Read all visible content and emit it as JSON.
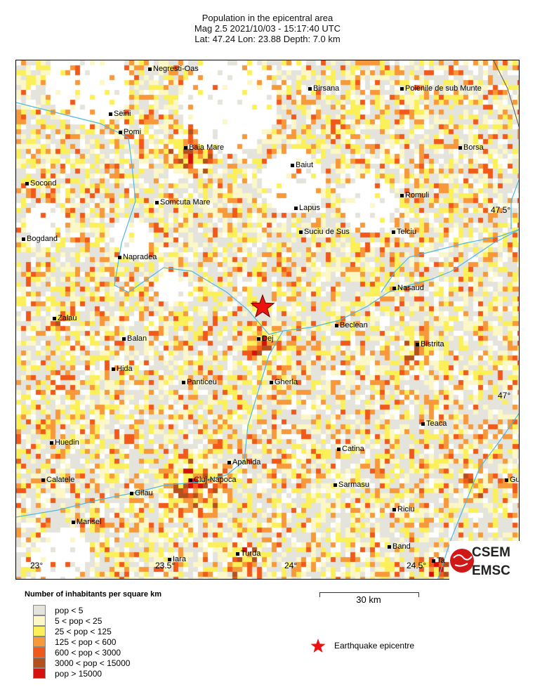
{
  "header": {
    "title": "Population in the epicentral area",
    "line2": "Mag 2.5  2021/10/03 - 15:17:40 UTC",
    "line3": "Lat: 47.24    Lon:  23.88     Depth:  7.0 km"
  },
  "map": {
    "cities": [
      "Negresti-Oas",
      "Birsana",
      "Poienile de sub Munte",
      "Seini",
      "Pomi",
      "Baia Mare",
      "Borsa",
      "Baiut",
      "Socond",
      "Somcuta Mare",
      "Lapus",
      "Romuli",
      "Bogdand",
      "Suciu de Sus",
      "Telciu",
      "Napradea",
      "Nasaud",
      "Zalau",
      "Beclean",
      "Dej",
      "Balan",
      "Bistrita",
      "Hida",
      "Panticeu",
      "Gherla",
      "Teaca",
      "Huedin",
      "Catina",
      "Apahida",
      "Cluj-Napoca",
      "Calatele",
      "Gu",
      "Sarmasu",
      "Gilau",
      "Riciu",
      "Marisel",
      "Band",
      "Iara",
      "Turda",
      "Ta"
    ],
    "lon_ticks": [
      "23°",
      "23.5°",
      "24°",
      "24.5°"
    ],
    "lat_ticks": [
      "47.5°",
      "47°"
    ],
    "epicentre_color": "#ee1111",
    "river_color": "#4fb8e0"
  },
  "legend": {
    "title": "Number of inhabitants per square km",
    "items": [
      {
        "label": "pop < 5",
        "color": "#e4e4dc"
      },
      {
        "label": "5 < pop < 25",
        "color": "#fcf7c6"
      },
      {
        "label": "25 < pop < 125",
        "color": "#fbf05a"
      },
      {
        "label": "125 < pop < 600",
        "color": "#f7983a"
      },
      {
        "label": "600 < pop < 3000",
        "color": "#f1591b"
      },
      {
        "label": "3000 < pop < 15000",
        "color": "#b4501d"
      },
      {
        "label": "pop > 15000",
        "color": "#d5100d"
      }
    ]
  },
  "scale": {
    "label": "30 km"
  },
  "epicentre_legend": {
    "label": "Earthquake epicentre"
  },
  "logo": {
    "top": "CSEM",
    "bottom": "EMSC"
  }
}
